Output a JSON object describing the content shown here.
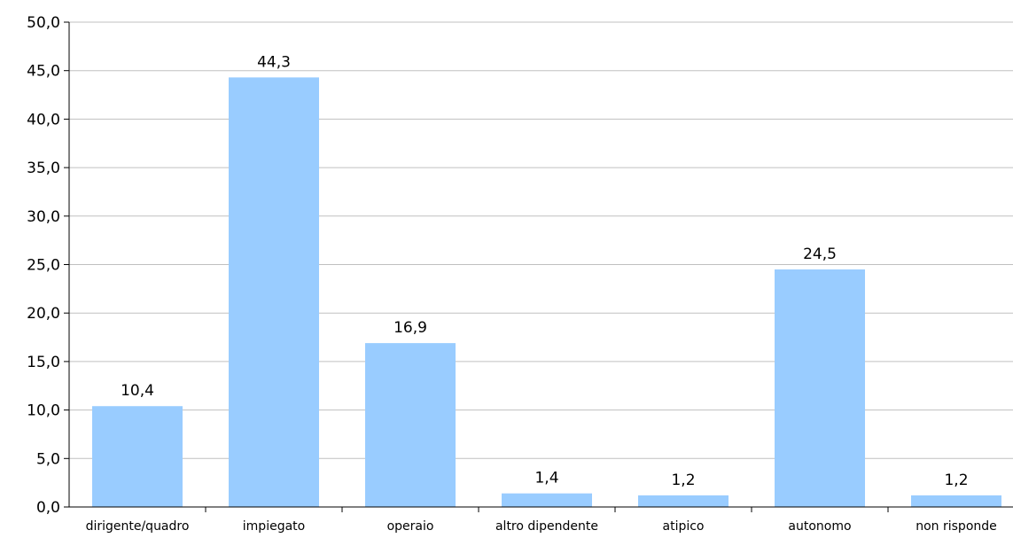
{
  "chart_data": {
    "type": "bar",
    "categories": [
      "dirigente/quadro",
      "impiegato",
      "operaio",
      "altro dipendente",
      "atipico",
      "autonomo",
      "non risponde"
    ],
    "values": [
      10.4,
      44.3,
      16.9,
      1.4,
      1.2,
      24.5,
      1.2
    ],
    "value_labels": [
      "10,4",
      "44,3",
      "16,9",
      "1,4",
      "1,2",
      "24,5",
      "1,2"
    ],
    "ylim": [
      0,
      50
    ],
    "yticks": [
      0,
      5,
      10,
      15,
      20,
      25,
      30,
      35,
      40,
      45,
      50
    ],
    "ytick_labels": [
      "0,0",
      "5,0",
      "10,0",
      "15,0",
      "20,0",
      "25,0",
      "30,0",
      "35,0",
      "40,0",
      "45,0",
      "50,0"
    ],
    "grid": true,
    "bar_color": "#99ccff",
    "grid_color": "#c0c0c0",
    "axis_color": "#000000"
  }
}
